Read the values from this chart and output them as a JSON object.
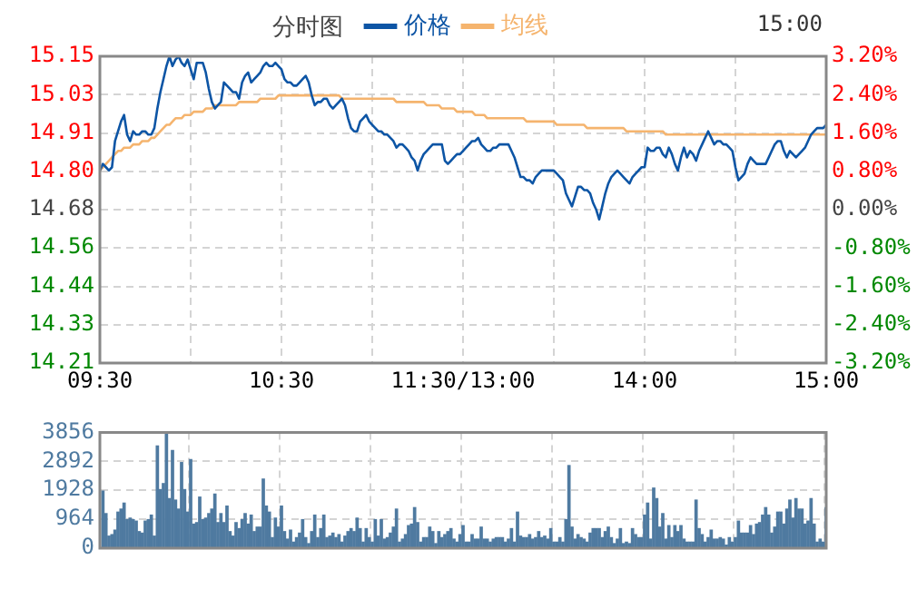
{
  "chart_data": [
    {
      "type": "line",
      "title": "分时图",
      "annotations": [
        "15:00"
      ],
      "legend": "top",
      "grid": true,
      "marker": "none",
      "line_style": "solid",
      "categories": [
        "09:30",
        null,
        null,
        null,
        null,
        null,
        null,
        null,
        null,
        null,
        null,
        null,
        null,
        null,
        null,
        null,
        null,
        null,
        null,
        null,
        null,
        null,
        null,
        null,
        null,
        null,
        null,
        null,
        null,
        null,
        null,
        null,
        null,
        null,
        null,
        null,
        null,
        null,
        null,
        null,
        null,
        null,
        null,
        null,
        null,
        null,
        null,
        null,
        null,
        null,
        null,
        null,
        null,
        null,
        null,
        null,
        null,
        null,
        null,
        null,
        "10:30",
        null,
        null,
        null,
        null,
        null,
        null,
        null,
        null,
        null,
        null,
        null,
        null,
        null,
        null,
        null,
        null,
        null,
        null,
        null,
        null,
        null,
        null,
        null,
        null,
        null,
        null,
        null,
        null,
        null,
        null,
        null,
        null,
        null,
        null,
        null,
        null,
        null,
        null,
        null,
        null,
        null,
        null,
        null,
        null,
        null,
        null,
        null,
        null,
        null,
        null,
        null,
        null,
        null,
        null,
        null,
        null,
        null,
        null,
        null,
        "11:30/13:00",
        null,
        null,
        null,
        null,
        null,
        null,
        null,
        null,
        null,
        null,
        null,
        null,
        null,
        null,
        null,
        null,
        null,
        null,
        null,
        null,
        null,
        null,
        null,
        null,
        null,
        null,
        null,
        null,
        null,
        null,
        null,
        null,
        null,
        null,
        null,
        null,
        null,
        null,
        null,
        null,
        null,
        null,
        null,
        null,
        null,
        null,
        null,
        null,
        null,
        null,
        null,
        null,
        null,
        null,
        null,
        null,
        null,
        null,
        null,
        "14:00",
        null,
        null,
        null,
        null,
        null,
        null,
        null,
        null,
        null,
        null,
        null,
        null,
        null,
        null,
        null,
        null,
        null,
        null,
        null,
        null,
        null,
        null,
        null,
        null,
        null,
        null,
        null,
        null,
        null,
        null,
        null,
        null,
        null,
        null,
        null,
        null,
        null,
        null,
        null,
        null,
        null,
        null,
        null,
        null,
        null,
        null,
        null,
        null,
        null,
        null,
        null,
        null,
        null,
        null,
        null,
        null,
        null,
        null,
        null,
        "15:00"
      ],
      "ylim": [
        14.21,
        15.15
      ],
      "yticks": [
        {
          "value": 15.15,
          "label": "15.15"
        },
        {
          "value": 15.032,
          "label": "15.03"
        },
        {
          "value": 14.915,
          "label": "14.91"
        },
        {
          "value": 14.797,
          "label": "14.80"
        },
        {
          "value": 14.68,
          "label": "14.68"
        },
        {
          "value": 14.563,
          "label": "14.56"
        },
        {
          "value": 14.445,
          "label": "14.44"
        },
        {
          "value": 14.328,
          "label": "14.33"
        },
        {
          "value": 14.21,
          "label": "14.21"
        }
      ],
      "y2lim": [
        -3.2,
        3.2
      ],
      "y2ticks": [
        {
          "value": 3.2,
          "label": "3.20%"
        },
        {
          "value": 2.4,
          "label": "2.40%"
        },
        {
          "value": 1.6,
          "label": "1.60%"
        },
        {
          "value": 0.8,
          "label": "0.80%"
        },
        {
          "value": 0,
          "label": "0.00%"
        },
        {
          "value": -0.8,
          "label": "-0.80%"
        },
        {
          "value": -1.6,
          "label": "-1.60%"
        },
        {
          "value": -2.4,
          "label": "-2.40%"
        },
        {
          "value": -3.2,
          "label": "-3.20%"
        }
      ],
      "series": [
        {
          "name": "价格",
          "color": "#0d55a5",
          "values": [
            14.8,
            14.82,
            14.81,
            14.8,
            14.81,
            14.89,
            14.92,
            14.95,
            14.97,
            14.91,
            14.89,
            14.92,
            14.91,
            14.91,
            14.92,
            14.92,
            14.91,
            14.91,
            14.93,
            14.99,
            15.04,
            15.08,
            15.12,
            15.15,
            15.12,
            15.14,
            15.15,
            15.13,
            15.12,
            15.14,
            15.11,
            15.08,
            15.13,
            15.13,
            15.13,
            15.1,
            15.05,
            15.01,
            14.99,
            15.0,
            15.01,
            15.07,
            15.06,
            15.05,
            15.04,
            15.04,
            15.02,
            15.07,
            15.09,
            15.1,
            15.07,
            15.08,
            15.09,
            15.1,
            15.12,
            15.13,
            15.12,
            15.12,
            15.13,
            15.12,
            15.11,
            15.08,
            15.07,
            15.07,
            15.06,
            15.06,
            15.07,
            15.08,
            15.09,
            15.07,
            15.03,
            15.0,
            15.01,
            15.01,
            15.02,
            15.02,
            15.0,
            14.99,
            15.0,
            15.01,
            15.02,
            15.0,
            14.96,
            14.93,
            14.92,
            14.92,
            14.95,
            14.96,
            14.97,
            14.95,
            14.94,
            14.93,
            14.92,
            14.92,
            14.91,
            14.91,
            14.9,
            14.89,
            14.87,
            14.88,
            14.88,
            14.87,
            14.86,
            14.84,
            14.83,
            14.8,
            14.83,
            14.85,
            14.86,
            14.87,
            14.88,
            14.88,
            14.88,
            14.88,
            14.83,
            14.82,
            14.83,
            14.84,
            14.85,
            14.85,
            14.86,
            14.87,
            14.88,
            14.89,
            14.89,
            14.9,
            14.88,
            14.87,
            14.86,
            14.86,
            14.87,
            14.87,
            14.88,
            14.88,
            14.88,
            14.88,
            14.86,
            14.84,
            14.81,
            14.78,
            14.78,
            14.77,
            14.77,
            14.76,
            14.78,
            14.79,
            14.8,
            14.8,
            14.8,
            14.8,
            14.8,
            14.79,
            14.78,
            14.77,
            14.73,
            14.71,
            14.69,
            14.72,
            14.75,
            14.75,
            14.74,
            14.74,
            14.73,
            14.7,
            14.68,
            14.65,
            14.69,
            14.73,
            14.76,
            14.78,
            14.79,
            14.8,
            14.79,
            14.78,
            14.77,
            14.76,
            14.78,
            14.79,
            14.8,
            14.81,
            14.81,
            14.87,
            14.86,
            14.86,
            14.87,
            14.87,
            14.85,
            14.84,
            14.87,
            14.85,
            14.82,
            14.8,
            14.84,
            14.87,
            14.84,
            14.86,
            14.85,
            14.83,
            14.86,
            14.88,
            14.9,
            14.92,
            14.9,
            14.88,
            14.89,
            14.89,
            14.88,
            14.88,
            14.87,
            14.86,
            14.81,
            14.77,
            14.78,
            14.79,
            14.82,
            14.84,
            14.83,
            14.82,
            14.82,
            14.82,
            14.82,
            14.84,
            14.86,
            14.88,
            14.89,
            14.89,
            14.86,
            14.84,
            14.86,
            14.85,
            14.84,
            14.85,
            14.86,
            14.87,
            14.89,
            14.91,
            14.92,
            14.93,
            14.93,
            14.93,
            14.94
          ]
        },
        {
          "name": "均线",
          "color": "#f5b46e",
          "values": [
            14.8,
            14.81,
            14.82,
            14.83,
            14.84,
            14.85,
            14.86,
            14.86,
            14.87,
            14.87,
            14.87,
            14.88,
            14.88,
            14.88,
            14.89,
            14.89,
            14.89,
            14.9,
            14.9,
            14.91,
            14.92,
            14.93,
            14.94,
            14.94,
            14.95,
            14.96,
            14.96,
            14.96,
            14.97,
            14.97,
            14.97,
            14.98,
            14.98,
            14.98,
            14.98,
            14.99,
            14.99,
            14.99,
            15.0,
            15.0,
            15.0,
            15.0,
            15.0,
            15.0,
            15.0,
            15.0,
            15.01,
            15.01,
            15.01,
            15.01,
            15.01,
            15.01,
            15.01,
            15.02,
            15.02,
            15.02,
            15.02,
            15.02,
            15.02,
            15.03,
            15.03,
            15.03,
            15.03,
            15.03,
            15.03,
            15.03,
            15.03,
            15.03,
            15.03,
            15.03,
            15.03,
            15.03,
            15.03,
            15.03,
            15.03,
            15.03,
            15.03,
            15.03,
            15.03,
            15.03,
            15.02,
            15.02,
            15.02,
            15.02,
            15.02,
            15.02,
            15.02,
            15.02,
            15.02,
            15.02,
            15.02,
            15.02,
            15.02,
            15.02,
            15.02,
            15.02,
            15.02,
            15.02,
            15.01,
            15.01,
            15.01,
            15.01,
            15.01,
            15.01,
            15.01,
            15.01,
            15.01,
            15.01,
            15.0,
            15.0,
            15.0,
            15.0,
            15.0,
            14.99,
            14.99,
            14.99,
            14.99,
            14.99,
            14.98,
            14.98,
            14.98,
            14.98,
            14.98,
            14.98,
            14.97,
            14.97,
            14.97,
            14.97,
            14.96,
            14.96,
            14.96,
            14.96,
            14.96,
            14.96,
            14.96,
            14.96,
            14.96,
            14.96,
            14.96,
            14.96,
            14.96,
            14.95,
            14.95,
            14.95,
            14.95,
            14.95,
            14.95,
            14.95,
            14.95,
            14.95,
            14.95,
            14.94,
            14.94,
            14.94,
            14.94,
            14.94,
            14.94,
            14.94,
            14.94,
            14.94,
            14.94,
            14.93,
            14.93,
            14.93,
            14.93,
            14.93,
            14.93,
            14.93,
            14.93,
            14.93,
            14.93,
            14.93,
            14.93,
            14.93,
            14.92,
            14.92,
            14.92,
            14.92,
            14.92,
            14.92,
            14.92,
            14.92,
            14.92,
            14.92,
            14.92,
            14.92,
            14.92,
            14.91,
            14.91,
            14.91,
            14.91,
            14.91,
            14.91,
            14.91,
            14.91,
            14.91,
            14.91,
            14.91,
            14.91,
            14.91,
            14.91,
            14.91,
            14.91,
            14.91,
            14.91,
            14.91,
            14.91,
            14.91,
            14.91,
            14.91,
            14.91,
            14.91,
            14.91,
            14.91,
            14.91,
            14.91,
            14.91,
            14.91,
            14.91,
            14.91,
            14.91,
            14.91,
            14.91,
            14.91,
            14.91,
            14.91,
            14.91,
            14.91,
            14.91,
            14.91,
            14.91,
            14.91,
            14.91,
            14.91,
            14.91,
            14.91,
            14.91,
            14.91,
            14.91,
            14.91,
            14.91
          ]
        }
      ]
    },
    {
      "type": "bar",
      "grid": true,
      "tick_labels": "y",
      "categories": [
        null,
        null,
        null,
        null,
        null,
        null,
        null,
        null,
        null,
        null,
        null,
        null,
        null,
        null,
        null,
        null,
        null,
        null,
        null,
        null,
        null,
        null,
        null,
        null,
        null,
        null,
        null,
        null,
        null,
        null,
        null,
        null,
        null,
        null,
        null,
        null,
        null,
        null,
        null,
        null,
        null,
        null,
        null,
        null,
        null,
        null,
        null,
        null,
        null,
        null,
        null,
        null,
        null,
        null,
        null,
        null,
        null,
        null,
        null,
        null,
        null,
        null,
        null,
        null,
        null,
        null,
        null,
        null,
        null,
        null,
        null,
        null,
        null,
        null,
        null,
        null,
        null,
        null,
        null,
        null,
        null,
        null,
        null,
        null,
        null,
        null,
        null,
        null,
        null,
        null,
        null,
        null,
        null,
        null,
        null,
        null,
        null,
        null,
        null,
        null,
        null,
        null,
        null,
        null,
        null,
        null,
        null,
        null,
        null,
        null,
        null,
        null,
        null,
        null,
        null,
        null,
        null,
        null,
        null,
        null,
        null,
        null,
        null,
        null,
        null,
        null,
        null,
        null,
        null,
        null,
        null,
        null,
        null,
        null,
        null,
        null,
        null,
        null,
        null,
        null,
        null,
        null,
        null,
        null,
        null,
        null,
        null,
        null,
        null,
        null,
        null,
        null,
        null,
        null,
        null,
        null,
        null,
        null,
        null,
        null,
        null,
        null,
        null,
        null,
        null,
        null,
        null,
        null,
        null,
        null,
        null,
        null,
        null,
        null,
        null,
        null,
        null,
        null,
        null,
        null,
        null,
        null,
        null,
        null,
        null,
        null,
        null,
        null,
        null,
        null,
        null,
        null,
        null,
        null,
        null,
        null,
        null,
        null,
        null,
        null,
        null,
        null,
        null,
        null,
        null,
        null,
        null,
        null,
        null,
        null,
        null,
        null,
        null,
        null,
        null,
        null,
        null,
        null,
        null,
        null,
        null,
        null,
        null,
        null,
        null,
        null,
        null,
        null,
        null,
        null,
        null,
        null,
        null,
        null,
        null,
        null,
        null,
        null,
        null,
        null,
        null
      ],
      "ylim": [
        0,
        3856
      ],
      "yticks": [
        0,
        964,
        1928,
        2892,
        3856
      ],
      "series": [
        {
          "color": "#4f7aa0",
          "values": [
            null,
            1900,
            1150,
            400,
            450,
            600,
            1200,
            1300,
            1500,
            950,
            1000,
            950,
            900,
            550,
            500,
            900,
            950,
            1100,
            400,
            3400,
            1950,
            2150,
            3850,
            1650,
            3250,
            1600,
            1300,
            2850,
            1950,
            1200,
            2950,
            800,
            850,
            1700,
            950,
            1000,
            1150,
            1300,
            1800,
            850,
            1150,
            850,
            1400,
            550,
            400,
            850,
            650,
            950,
            1150,
            800,
            1100,
            550,
            700,
            700,
            2300,
            1400,
            1200,
            350,
            1000,
            700,
            1400,
            550,
            300,
            600,
            200,
            350,
            500,
            950,
            350,
            150,
            550,
            1100,
            350,
            650,
            1100,
            350,
            400,
            500,
            350,
            450,
            200,
            400,
            550,
            650,
            550,
            1000,
            650,
            200,
            650,
            350,
            200,
            950,
            400,
            950,
            300,
            350,
            500,
            700,
            1300,
            200,
            300,
            450,
            750,
            800,
            1350,
            850,
            200,
            350,
            350,
            700,
            550,
            150,
            550,
            350,
            450,
            550,
            650,
            300,
            200,
            450,
            750,
            200,
            200,
            450,
            300,
            300,
            700,
            300,
            300,
            200,
            300,
            350,
            350,
            350,
            200,
            300,
            650,
            200,
            1200,
            400,
            350,
            350,
            450,
            300,
            350,
            550,
            350,
            400,
            300,
            650,
            200,
            200,
            350,
            200,
            950,
            2750,
            700,
            300,
            450,
            350,
            300,
            200,
            500,
            650,
            650,
            650,
            350,
            550,
            700,
            350,
            150,
            300,
            650,
            150,
            200,
            150,
            650,
            450,
            350,
            350,
            1100,
            1500,
            300,
            2000,
            1650,
            700,
            1150,
            300,
            750,
            350,
            750,
            550,
            750,
            300,
            200,
            200,
            200,
            1600,
            650,
            450,
            200,
            350,
            600,
            300,
            300,
            350,
            300,
            100,
            350,
            200,
            350,
            900,
            500,
            500,
            500,
            750,
            450,
            800,
            850,
            1100,
            1350,
            1100,
            500,
            700,
            1200,
            1200,
            800,
            1300,
            1600,
            1000,
            1650,
            1300,
            1300,
            800,
            900,
            1650,
            800,
            200,
            300,
            200,
            1350
          ]
        }
      ]
    }
  ]
}
